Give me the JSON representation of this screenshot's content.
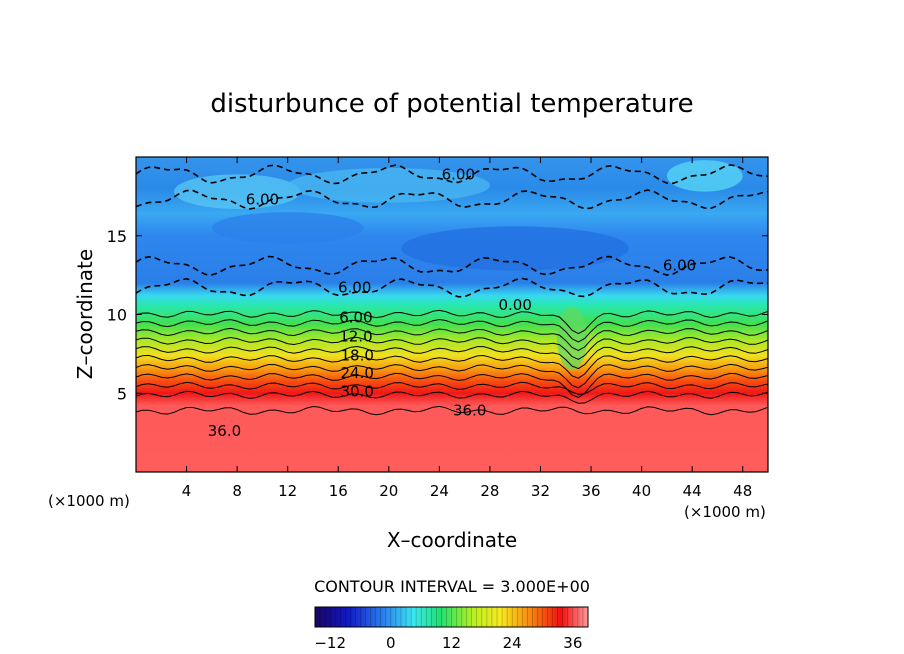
{
  "chart_data": {
    "type": "contour",
    "title": "disturbunce of potential temperature",
    "xlabel": "X–coordinate",
    "ylabel": "Z–coordinate",
    "x_unit_left": "(×1000 m)",
    "x_unit_right": "(×1000 m)",
    "xlim": [
      0,
      50
    ],
    "ylim": [
      0,
      20
    ],
    "x_ticks": [
      4,
      8,
      12,
      16,
      20,
      24,
      28,
      32,
      36,
      40,
      44,
      48
    ],
    "y_ticks": [
      5,
      10,
      15
    ],
    "contour_interval_label": "CONTOUR INTERVAL = 3.000E+00",
    "contour_interval": 3,
    "colorbar": {
      "range": [
        -15,
        39
      ],
      "ticks": [
        -12,
        0,
        12,
        24,
        36
      ],
      "tick_labels": [
        "−12",
        "0",
        "12",
        "24",
        "36"
      ]
    },
    "contour_labels": [
      {
        "text": "6.00",
        "x": 25.5,
        "y": 18.9
      },
      {
        "text": "6.00",
        "x": 10.0,
        "y": 17.3
      },
      {
        "text": "6.00",
        "x": 17.3,
        "y": 11.7
      },
      {
        "text": "6.00",
        "x": 43.0,
        "y": 13.1
      },
      {
        "text": "0.00",
        "x": 30.0,
        "y": 10.6
      },
      {
        "text": "6.00",
        "x": 17.4,
        "y": 9.8
      },
      {
        "text": "12.0",
        "x": 17.4,
        "y": 8.6
      },
      {
        "text": "18.0",
        "x": 17.5,
        "y": 7.4
      },
      {
        "text": "24.0",
        "x": 17.5,
        "y": 6.3
      },
      {
        "text": "30.0",
        "x": 17.5,
        "y": 5.1
      },
      {
        "text": "36.0",
        "x": 26.4,
        "y": 3.9
      },
      {
        "text": "36.0",
        "x": 7.0,
        "y": 2.6
      }
    ]
  }
}
